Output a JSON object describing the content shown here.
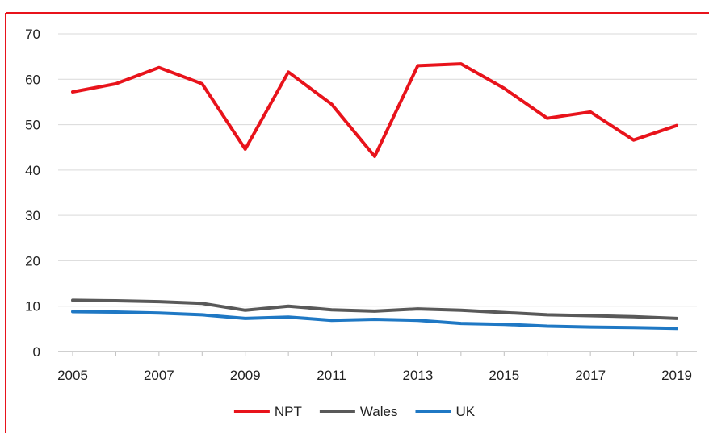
{
  "chart_data": {
    "type": "line",
    "title": "",
    "xlabel": "",
    "ylabel": "",
    "x": [
      2005,
      2006,
      2007,
      2008,
      2009,
      2010,
      2011,
      2012,
      2013,
      2014,
      2015,
      2016,
      2017,
      2018,
      2019
    ],
    "x_tick_labels": [
      "2005",
      "2007",
      "2009",
      "2011",
      "2013",
      "2015",
      "2017",
      "2019"
    ],
    "y_tick_labels": [
      "0",
      "10",
      "20",
      "30",
      "40",
      "50",
      "60",
      "70"
    ],
    "ylim": [
      0,
      70
    ],
    "grid": true,
    "legend_position": "bottom",
    "series": [
      {
        "name": "NPT",
        "color": "#e8131b",
        "values": [
          57.2,
          59,
          62.6,
          59,
          44.6,
          61.6,
          54.5,
          43,
          63,
          63.4,
          58,
          51.4,
          52.8,
          46.6,
          49.8
        ]
      },
      {
        "name": "Wales",
        "color": "#595959",
        "values": [
          11.3,
          11.2,
          11,
          10.6,
          9.1,
          10,
          9.2,
          8.9,
          9.4,
          9.1,
          8.6,
          8.1,
          7.9,
          7.7,
          7.3
        ]
      },
      {
        "name": "UK",
        "color": "#1f78c4",
        "values": [
          8.8,
          8.7,
          8.5,
          8.1,
          7.3,
          7.6,
          6.9,
          7.1,
          6.9,
          6.2,
          6,
          5.6,
          5.4,
          5.3,
          5.1
        ]
      }
    ]
  },
  "frame_color": "#e8131b"
}
